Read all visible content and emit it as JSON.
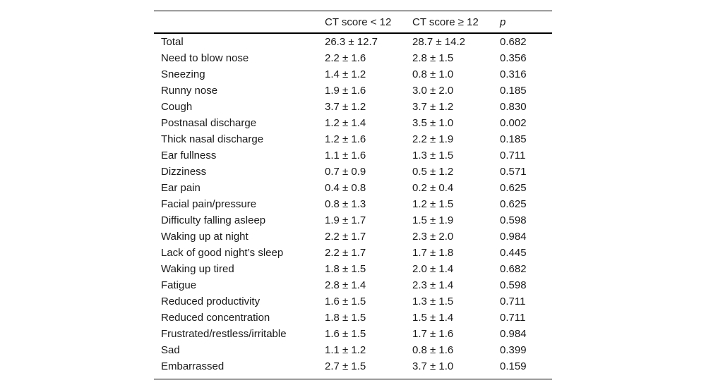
{
  "table": {
    "header": [
      "CT score < 12",
      "CT score ≥ 12",
      "p"
    ],
    "rows": [
      [
        "Total",
        "26.3 ± 12.7",
        "28.7 ± 14.2",
        "0.682"
      ],
      [
        "Need to blow nose",
        "2.2 ± 1.6",
        "2.8 ± 1.5",
        "0.356"
      ],
      [
        "Sneezing",
        "1.4 ± 1.2",
        "0.8 ± 1.0",
        "0.316"
      ],
      [
        "Runny nose",
        "1.9 ± 1.6",
        "3.0 ± 2.0",
        "0.185"
      ],
      [
        "Cough",
        "3.7 ± 1.2",
        "3.7 ± 1.2",
        "0.830"
      ],
      [
        "Postnasal discharge",
        "1.2 ± 1.4",
        "3.5 ± 1.0",
        "0.002"
      ],
      [
        "Thick nasal discharge",
        "1.2 ± 1.6",
        "2.2 ± 1.9",
        "0.185"
      ],
      [
        "Ear fullness",
        "1.1 ± 1.6",
        "1.3 ± 1.5",
        "0.711"
      ],
      [
        "Dizziness",
        "0.7 ± 0.9",
        "0.5 ± 1.2",
        "0.571"
      ],
      [
        "Ear pain",
        "0.4 ± 0.8",
        "0.2 ± 0.4",
        "0.625"
      ],
      [
        "Facial pain/pressure",
        "0.8 ± 1.3",
        "1.2 ± 1.5",
        "0.625"
      ],
      [
        "Difficulty falling asleep",
        "1.9 ± 1.7",
        "1.5 ± 1.9",
        "0.598"
      ],
      [
        "Waking up at night",
        "2.2 ± 1.7",
        "2.3 ± 2.0",
        "0.984"
      ],
      [
        "Lack of good night’s sleep",
        "2.2 ± 1.7",
        "1.7 ± 1.8",
        "0.445"
      ],
      [
        "Waking up tired",
        "1.8 ± 1.5",
        "2.0 ± 1.4",
        "0.682"
      ],
      [
        "Fatigue",
        "2.8 ± 1.4",
        "2.3 ± 1.4",
        "0.598"
      ],
      [
        "Reduced productivity",
        "1.6 ± 1.5",
        "1.3 ± 1.5",
        "0.711"
      ],
      [
        "Reduced concentration",
        "1.8 ± 1.5",
        "1.5 ± 1.4",
        "0.711"
      ],
      [
        "Frustrated/restless/irritable",
        "1.6 ± 1.5",
        "1.7 ± 1.6",
        "0.984"
      ],
      [
        "Sad",
        "1.1 ± 1.2",
        "0.8 ± 1.6",
        "0.399"
      ],
      [
        "Embarrassed",
        "2.7 ± 1.5",
        "3.7 ± 1.0",
        "0.159"
      ]
    ]
  }
}
